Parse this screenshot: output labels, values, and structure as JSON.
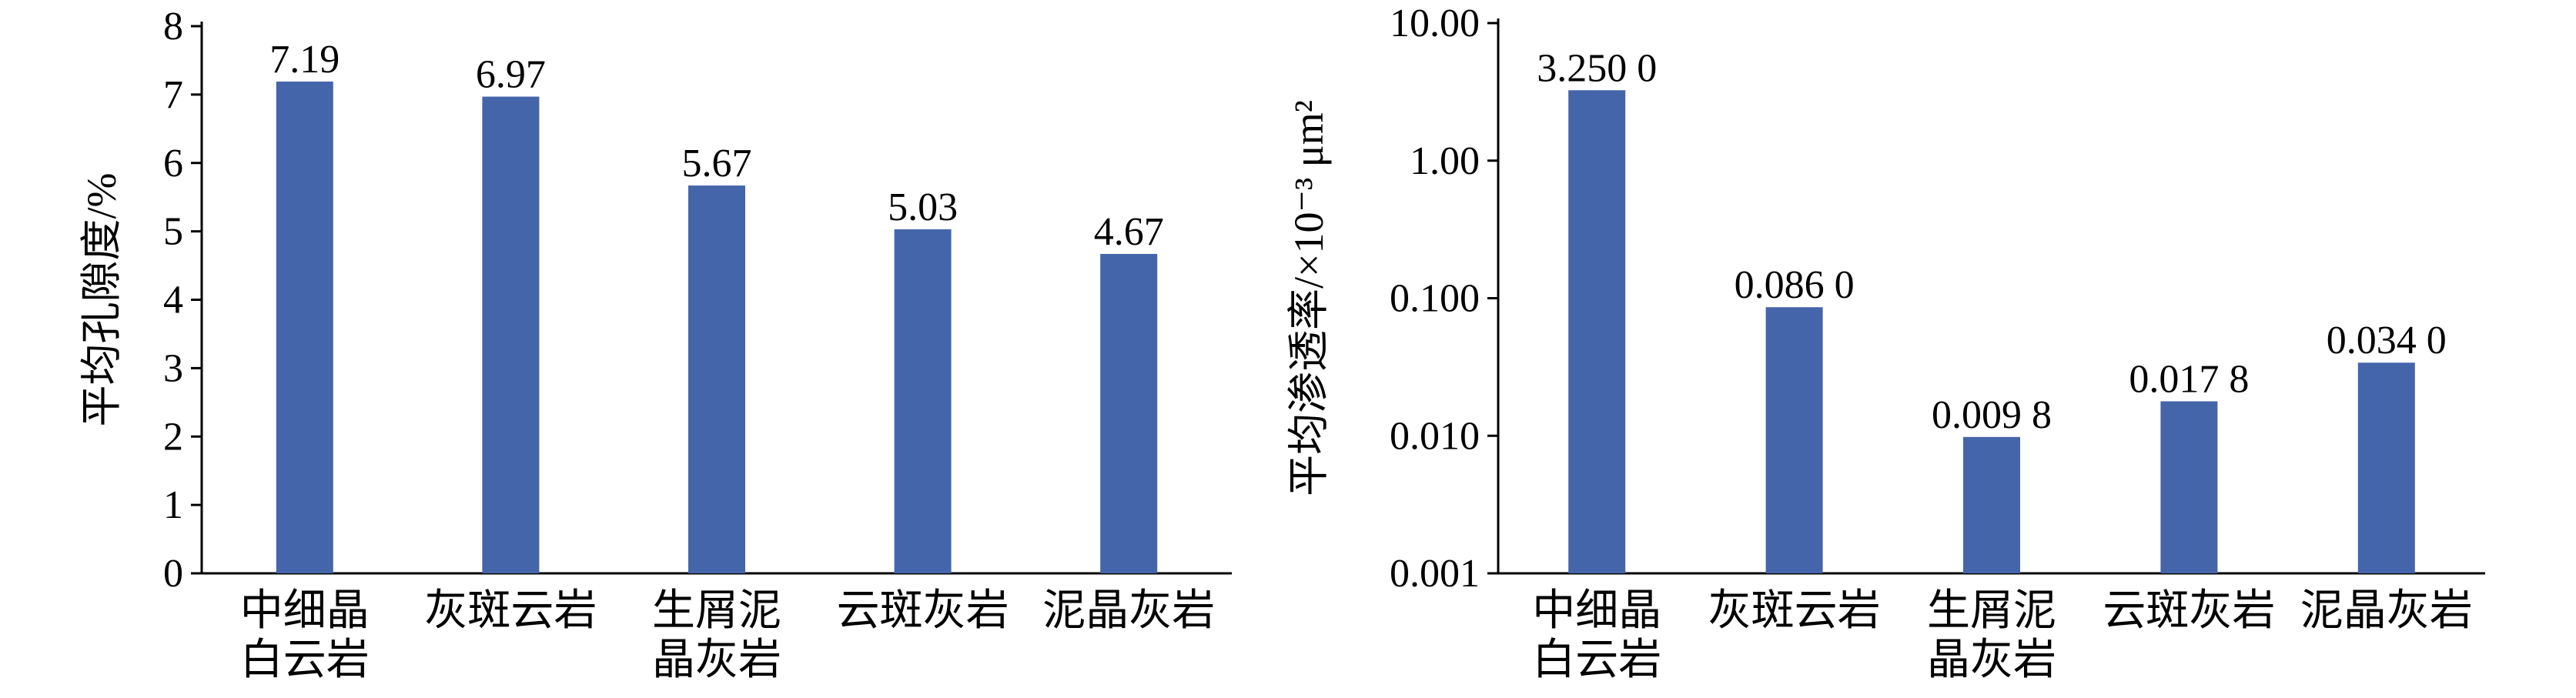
{
  "chart_data": [
    {
      "type": "bar",
      "title": "",
      "xlabel": "",
      "ylabel": "平均孔隙度/%",
      "ylim": [
        0,
        8
      ],
      "yticks": [
        "0",
        "1",
        "2",
        "3",
        "4",
        "5",
        "6",
        "7",
        "8"
      ],
      "categories": [
        [
          "中细晶",
          "白云岩"
        ],
        [
          "灰斑云岩"
        ],
        [
          "生屑泥",
          "晶灰岩"
        ],
        [
          "云斑灰岩"
        ],
        [
          "泥晶灰岩"
        ]
      ],
      "values": [
        7.19,
        6.97,
        5.67,
        5.03,
        4.67
      ],
      "data_labels": [
        "7.19",
        "6.97",
        "5.67",
        "5.03",
        "4.67"
      ],
      "bar_color": "#4565ab",
      "grid": false,
      "legend": "none"
    },
    {
      "type": "bar",
      "title": "",
      "xlabel": "",
      "ylabel": "平均渗透率/×10⁻³ μm²",
      "yscale": "log",
      "ylim": [
        0.001,
        10
      ],
      "yticks": [
        "0.001",
        "0.010",
        "0.100",
        "1.00",
        "10.00"
      ],
      "categories": [
        [
          "中细晶",
          "白云岩"
        ],
        [
          "灰斑云岩"
        ],
        [
          "生屑泥",
          "晶灰岩"
        ],
        [
          "云斑灰岩"
        ],
        [
          "泥晶灰岩"
        ]
      ],
      "values": [
        3.25,
        0.086,
        0.0098,
        0.0178,
        0.034
      ],
      "data_labels": [
        "3.250 0",
        "0.086 0",
        "0.009 8",
        "0.017 8",
        "0.034 0"
      ],
      "bar_color": "#4565ab",
      "grid": false,
      "legend": "none"
    }
  ]
}
